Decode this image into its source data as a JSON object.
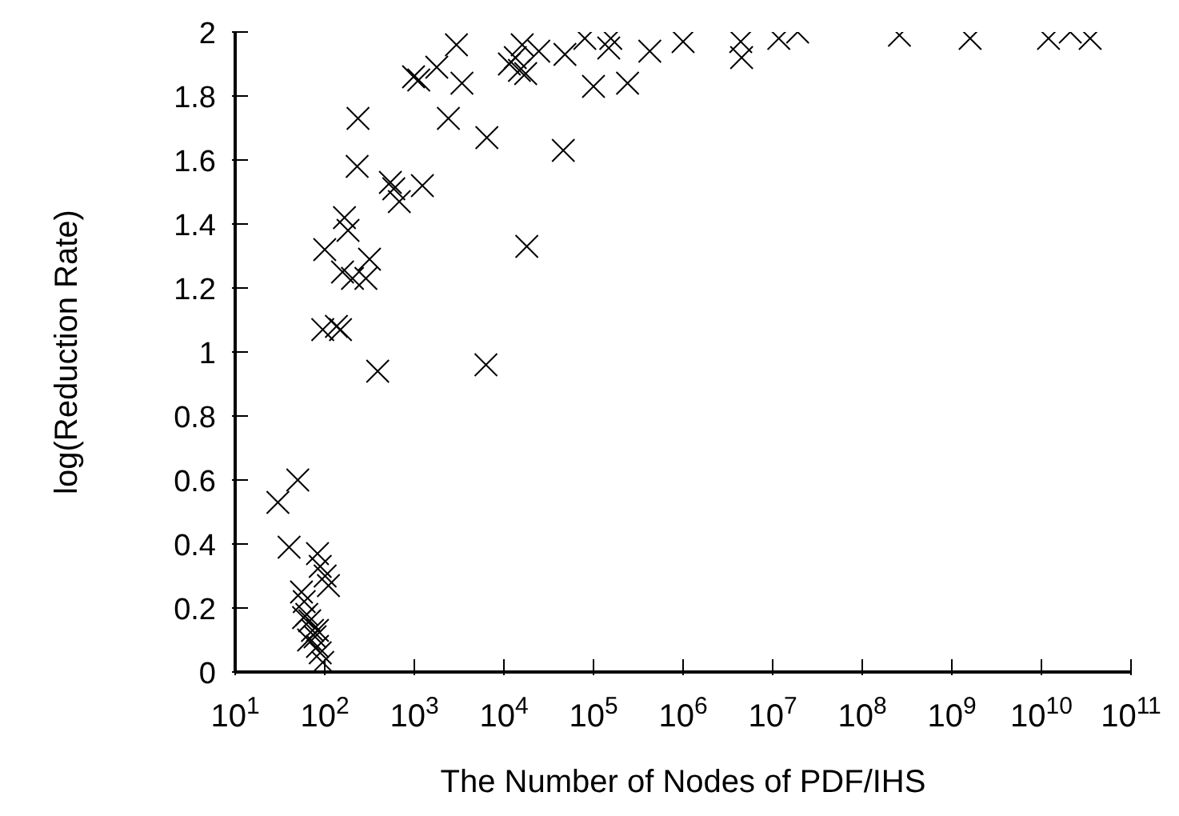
{
  "chart_data": {
    "type": "scatter",
    "xlabel": "The Number of Nodes of PDF/IHS",
    "ylabel": "log(Reduction Rate)",
    "log": "x",
    "grid": false,
    "legend": false,
    "marker": "cross",
    "xlim": [
      10,
      100000000000
    ],
    "ylim": [
      0,
      2
    ],
    "xticks": [
      {
        "value": 10,
        "label": "10$^{1}$"
      },
      {
        "value": 100,
        "label": "10$^{2}$"
      },
      {
        "value": 1000,
        "label": "10$^{3}$"
      },
      {
        "value": 10000,
        "label": "10$^{4}$"
      },
      {
        "value": 100000,
        "label": "10$^{5}$"
      },
      {
        "value": 1000000,
        "label": "10$^{6}$"
      },
      {
        "value": 10000000,
        "label": "10$^{7}$"
      },
      {
        "value": 100000000,
        "label": "10$^{8}$"
      },
      {
        "value": 1000000000,
        "label": "10$^{9}$"
      },
      {
        "value": 10000000000,
        "label": "10$^{10}$"
      },
      {
        "value": 100000000000,
        "label": "10$^{11}$"
      }
    ],
    "yticks": [
      0,
      0.2,
      0.4,
      0.6,
      0.8,
      1,
      1.2,
      1.4,
      1.6,
      1.8,
      2
    ],
    "series": [
      {
        "color": "#000000",
        "x": [
          30,
          50,
          40,
          83,
          89,
          101,
          110,
          55,
          59,
          63,
          68,
          73,
          78,
          83,
          89,
          95,
          58,
          83,
          66,
          95,
          135,
          150,
          390,
          6300,
          2950,
          980,
          1120,
          1780,
          3400,
          11500,
          13400,
          14900,
          235,
          2400,
          6450,
          230,
          540,
          590,
          1230,
          680,
          166,
          182,
          100,
          316,
          158,
          204,
          288,
          16000,
          24500,
          17500,
          48000,
          80000,
          148000,
          156000,
          425000,
          1000000,
          4400000,
          4500000,
          11700000,
          19000000,
          100000,
          240000,
          46000,
          18000,
          260000000,
          1600000000,
          12000000000,
          21000000000,
          35000000000
        ],
        "values": [
          0.53,
          0.6,
          0.39,
          0.37,
          0.33,
          0.3,
          0.27,
          0.25,
          0.22,
          0.18,
          0.16,
          0.13,
          0.11,
          0.08,
          0.06,
          0.03,
          0.17,
          0.13,
          0.1,
          1.07,
          1.08,
          1.07,
          0.94,
          0.96,
          1.96,
          1.86,
          1.85,
          1.89,
          1.84,
          1.9,
          1.92,
          1.88,
          1.73,
          1.73,
          1.67,
          1.58,
          1.53,
          1.51,
          1.52,
          1.47,
          1.42,
          1.38,
          1.32,
          1.29,
          1.25,
          1.23,
          1.23,
          1.96,
          1.94,
          1.87,
          1.93,
          1.98,
          1.95,
          1.98,
          1.94,
          1.97,
          1.97,
          1.92,
          1.98,
          2.0,
          1.83,
          1.84,
          1.63,
          1.33,
          1.99,
          1.98,
          1.98,
          2.0,
          1.98
        ]
      }
    ]
  }
}
